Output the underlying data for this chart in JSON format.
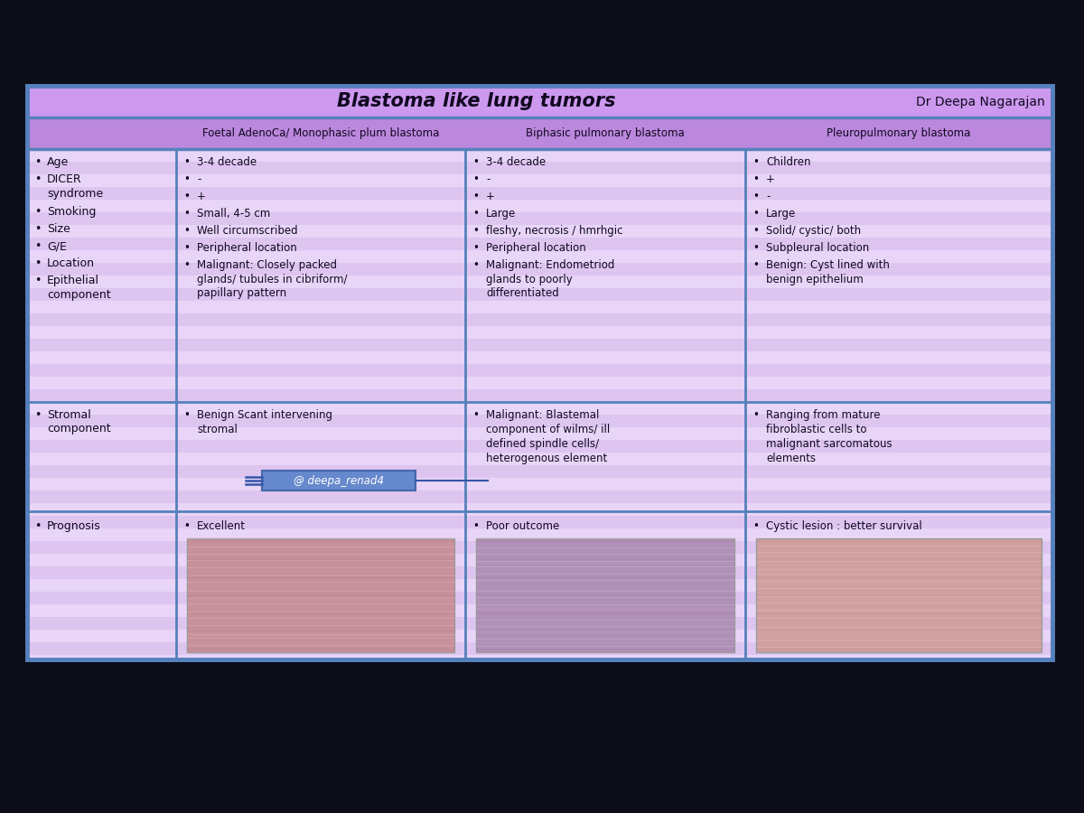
{
  "title": "Blastoma like lung tumors",
  "author": "Dr Deepa Nagarajan",
  "watermark": "@ deepa_renad4",
  "bg_outer": "#0d0d1a",
  "bg_table_border": "#5580bb",
  "bg_header": "#cc99ee",
  "bg_subheader": "#bb88dd",
  "bg_stripe1": "#e8d5f7",
  "bg_stripe2": "#ddc5f0",
  "text_color": "#110820",
  "columns": [
    "Foetal AdenoCa/ Monophasic plum blastoma",
    "Biphasic pulmonary blastoma",
    "Pleuropulmonary blastoma"
  ],
  "col0_labels_block1": [
    "Age",
    "DICER\nsyndrome",
    "Smoking",
    "Size",
    "G/E",
    "Location",
    "Epithelial\ncomponent"
  ],
  "col0_labels_block2": [
    "Stromal\ncomponent"
  ],
  "col0_labels_block3": [
    "Prognosis"
  ],
  "col1_block1": [
    "3-4 decade",
    "-",
    "+",
    "Small, 4-5 cm",
    "Well circumscribed",
    "Peripheral location",
    "Malignant: Closely packed\nglands/ tubules in cibriform/\npapillary pattern"
  ],
  "col1_block2": [
    "Benign Scant intervening\nstromal"
  ],
  "col1_block3": [
    "Excellent"
  ],
  "col2_block1": [
    "3-4 decade",
    "-",
    "+",
    "Large",
    "fleshy, necrosis / hmrhgic",
    "Peripheral location",
    "Malignant: Endometriod\nglands to poorly\ndifferentiated"
  ],
  "col2_block2": [
    "Malignant: Blastemal\ncomponent of wilms/ ill\ndefined spindle cells/\nheterogenous element"
  ],
  "col2_block3": [
    "Poor outcome"
  ],
  "col3_block1": [
    "Children",
    "+",
    "-",
    "Large",
    "Solid/ cystic/ both",
    "Subpleural location",
    "Benign: Cyst lined with\nbenign epithelium"
  ],
  "col3_block2": [
    "Ranging from mature\nfibroblastic cells to\nmalignant sarcomatous\nelements"
  ],
  "col3_block3": [
    "Cystic lesion : better survival"
  ],
  "font_name": "DejaVu Sans"
}
